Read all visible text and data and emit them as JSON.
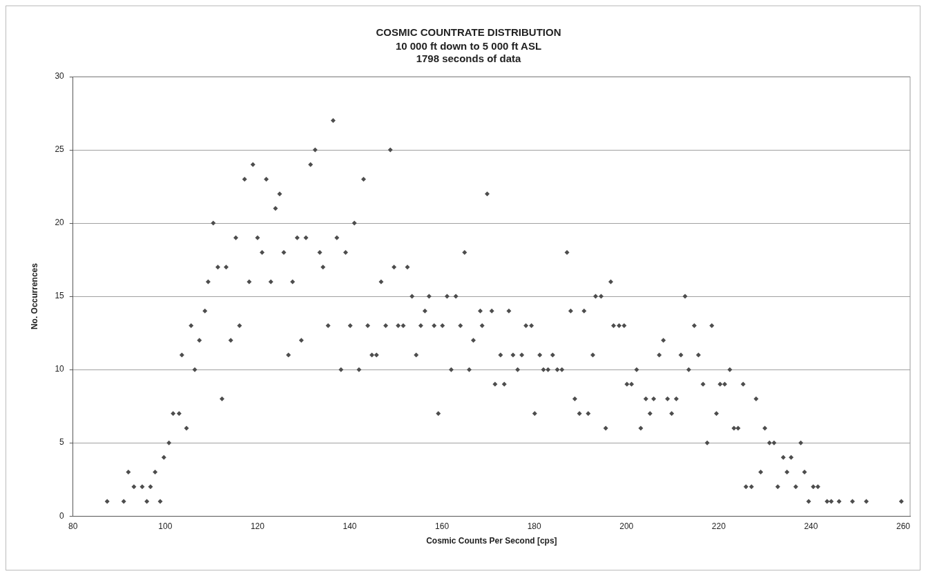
{
  "chart_data": {
    "type": "scatter",
    "title": "COSMIC COUNTRATE DISTRIBUTION",
    "subtitle": "10 000 ft down to 5 000 ft ASL\n1798 seconds of data",
    "xlabel": "Cosmic Counts Per Second [cps]",
    "ylabel": "No. Occurrences",
    "x": [
      87.4,
      91.0,
      92.0,
      93.2,
      95.0,
      96.0,
      96.8,
      97.8,
      98.9,
      99.7,
      100.8,
      101.7,
      103.0,
      103.6,
      104.6,
      105.6,
      106.4,
      107.4,
      108.6,
      109.3,
      110.4,
      111.4,
      112.3,
      113.2,
      114.2,
      115.3,
      116.1,
      117.2,
      118.2,
      119.0,
      120.0,
      121.0,
      121.9,
      122.9,
      123.9,
      124.8,
      125.7,
      126.7,
      127.6,
      128.6,
      129.5,
      130.5,
      131.5,
      132.5,
      133.5,
      134.2,
      135.3,
      136.4,
      137.2,
      138.1,
      139.1,
      140.1,
      141.0,
      142.0,
      143.0,
      143.9,
      144.8,
      145.8,
      146.8,
      147.8,
      148.8,
      149.6,
      150.5,
      151.6,
      152.5,
      153.5,
      154.4,
      155.4,
      156.3,
      157.2,
      158.3,
      159.2,
      160.1,
      161.1,
      162.0,
      163.0,
      164.0,
      164.9,
      165.9,
      166.8,
      168.3,
      168.7,
      169.8,
      170.8,
      171.5,
      172.7,
      173.5,
      174.5,
      175.4,
      176.4,
      177.3,
      178.2,
      179.4,
      180.1,
      181.2,
      182.0,
      183.0,
      184.0,
      185.0,
      186.0,
      187.1,
      187.9,
      188.8,
      189.8,
      190.8,
      191.7,
      192.7,
      193.3,
      194.5,
      195.5,
      196.6,
      197.2,
      198.4,
      199.5,
      200.1,
      201.1,
      202.2,
      203.1,
      204.2,
      205.1,
      205.9,
      207.1,
      208.0,
      208.9,
      209.8,
      210.8,
      211.8,
      212.7,
      213.5,
      214.7,
      215.6,
      216.6,
      217.5,
      218.5,
      219.5,
      220.3,
      221.3,
      222.4,
      223.3,
      224.2,
      225.3,
      225.9,
      227.1,
      228.1,
      229.1,
      230.0,
      231.0,
      232.0,
      232.8,
      234.0,
      234.8,
      235.7,
      236.7,
      237.8,
      238.6,
      239.5,
      240.5,
      241.5,
      243.5,
      244.4,
      246.1,
      249.0,
      252.0,
      259.6
    ],
    "series": [
      {
        "color": "#4d4d4d",
        "values": [
          1,
          1,
          3,
          2,
          2,
          1,
          2,
          3,
          1,
          4,
          5,
          7,
          7,
          11,
          6,
          13,
          10,
          12,
          14,
          16,
          20,
          17,
          8,
          17,
          12,
          19,
          13,
          23,
          16,
          24,
          19,
          18,
          23,
          16,
          21,
          22,
          18,
          11,
          16,
          19,
          12,
          19,
          24,
          25,
          18,
          17,
          13,
          27,
          19,
          10,
          18,
          13,
          20,
          10,
          23,
          13,
          11,
          11,
          16,
          13,
          25,
          17,
          13,
          13,
          17,
          15,
          11,
          13,
          14,
          15,
          13,
          7,
          13,
          15,
          10,
          15,
          13,
          18,
          10,
          12,
          14,
          13,
          22,
          14,
          9,
          11,
          9,
          14,
          11,
          10,
          11,
          13,
          13,
          7,
          11,
          10,
          10,
          11,
          10,
          10,
          18,
          14,
          8,
          7,
          14,
          7,
          11,
          15,
          15,
          6,
          16,
          13,
          13,
          13,
          9,
          9,
          10,
          6,
          8,
          7,
          8,
          11,
          12,
          8,
          7,
          8,
          11,
          15,
          10,
          13,
          11,
          9,
          5,
          13,
          7,
          9,
          9,
          10,
          6,
          6,
          9,
          2,
          2,
          8,
          3,
          6,
          5,
          5,
          2,
          4,
          3,
          4,
          2,
          5,
          3,
          1,
          2,
          2,
          1,
          1,
          1,
          1,
          1,
          1
        ]
      }
    ],
    "xlim": [
      80,
      261.5
    ],
    "xticks": [
      80,
      100,
      120,
      140,
      160,
      180,
      200,
      220,
      240,
      260
    ],
    "ylim": [
      0,
      30
    ],
    "yticks": [
      0,
      5,
      10,
      15,
      20,
      25,
      30
    ],
    "grid": "y",
    "legend": false,
    "marker": "diamond"
  }
}
